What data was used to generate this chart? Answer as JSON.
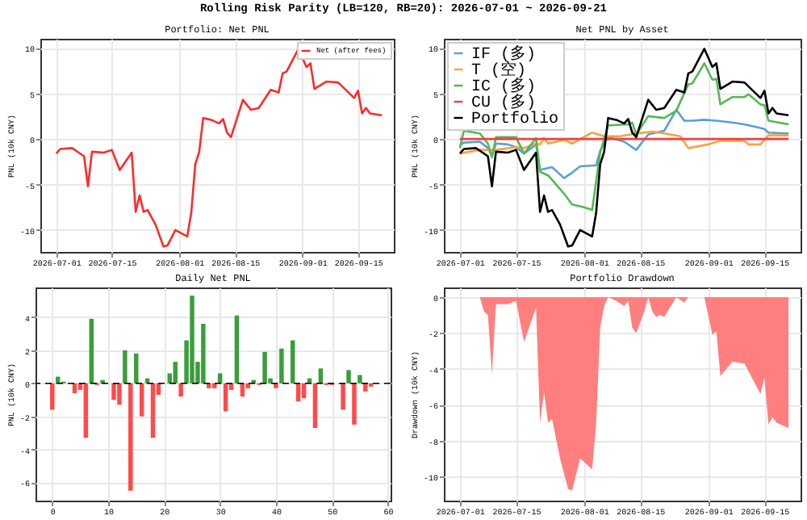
{
  "chart_data": [
    {
      "type": "line",
      "title": "Portfolio: Net PNL",
      "ylabel": "PNL (10k CNY)",
      "annotations": [
        "Rolling Risk Parity (LB=120, RB=20): 2026-07-01 ~ 2026-09-21"
      ],
      "x": [
        "2026-07-01",
        "2026-07-02",
        "2026-07-05",
        "2026-07-06",
        "2026-07-08",
        "2026-07-09",
        "2026-07-10",
        "2026-07-13",
        "2026-07-15",
        "2026-07-17",
        "2026-07-20",
        "2026-07-21",
        "2026-07-22",
        "2026-07-23",
        "2026-07-24",
        "2026-07-26",
        "2026-07-28",
        "2026-07-29",
        "2026-07-31",
        "2026-08-03",
        "2026-08-04",
        "2026-08-05",
        "2026-08-06",
        "2026-08-07",
        "2026-08-09",
        "2026-08-11",
        "2026-08-12",
        "2026-08-13",
        "2026-08-14",
        "2026-08-17",
        "2026-08-19",
        "2026-08-21",
        "2026-08-24",
        "2026-08-26",
        "2026-08-27",
        "2026-08-28",
        "2026-08-31",
        "2026-09-02",
        "2026-09-03",
        "2026-09-04",
        "2026-09-07",
        "2026-09-10",
        "2026-09-14",
        "2026-09-15",
        "2026-09-16",
        "2026-09-17",
        "2026-09-18",
        "2026-09-21"
      ],
      "series": [
        {
          "name": "Net (after fees)",
          "color": "#ff2a2a",
          "values": [
            -1.6,
            -1.1,
            -1.0,
            -1.3,
            -1.9,
            -5.2,
            -1.4,
            -1.5,
            -1.2,
            -3.4,
            -1.5,
            -8.0,
            -6.2,
            -8.0,
            -7.8,
            -9.4,
            -11.8,
            -11.7,
            -10.0,
            -10.7,
            -8.1,
            -2.8,
            -1.4,
            2.3,
            2.1,
            1.7,
            2.2,
            0.7,
            0.2,
            4.3,
            3.2,
            3.4,
            5.4,
            5.1,
            7.2,
            7.4,
            9.9,
            7.9,
            8.3,
            5.5,
            6.3,
            6.2,
            4.5,
            5.3,
            2.8,
            3.4,
            2.8,
            2.6
          ]
        }
      ],
      "xlim": [
        "2026-06-27",
        "2026-09-24"
      ],
      "xticks": [
        "2026-07-01",
        "2026-07-15",
        "2026-08-01",
        "2026-08-15",
        "2026-09-01",
        "2026-09-15"
      ],
      "ylim": [
        -12.4,
        11
      ],
      "yticks": [
        -10,
        -5,
        0,
        5,
        10
      ],
      "grid": true,
      "legend": "top right"
    },
    {
      "type": "line",
      "title": "Net PNL by Asset",
      "ylabel": "PNL (10k CNY)",
      "series": [
        {
          "name": "IF (多)",
          "color": "#5a9fd6",
          "x": [
            "2026-07-01",
            "2026-07-02",
            "2026-07-06",
            "2026-07-08",
            "2026-07-09",
            "2026-07-10",
            "2026-07-13",
            "2026-07-15",
            "2026-07-17",
            "2026-07-20",
            "2026-07-21",
            "2026-07-22",
            "2026-07-24",
            "2026-07-27",
            "2026-07-29",
            "2026-07-31",
            "2026-08-04",
            "2026-08-05",
            "2026-08-07",
            "2026-08-11",
            "2026-08-14",
            "2026-08-17",
            "2026-08-21",
            "2026-08-24",
            "2026-08-26",
            "2026-08-28",
            "2026-08-31",
            "2026-09-03",
            "2026-09-07",
            "2026-09-10",
            "2026-09-14",
            "2026-09-15",
            "2026-09-16",
            "2026-09-21"
          ],
          "values": [
            -0.7,
            -0.4,
            -0.3,
            -1.0,
            -1.9,
            -0.5,
            -0.6,
            -0.9,
            -1.6,
            -0.6,
            -3.4,
            -3.3,
            -3.1,
            -4.3,
            -3.7,
            -3.0,
            -2.9,
            -1.3,
            0.2,
            -0.3,
            -1.2,
            0.5,
            0.9,
            3.2,
            2.0,
            2.0,
            2.1,
            2.0,
            1.8,
            1.6,
            1.2,
            1.1,
            0.7,
            0.6
          ]
        },
        {
          "name": "T (空)",
          "color": "#ffa040",
          "x": [
            "2026-07-01",
            "2026-07-06",
            "2026-07-10",
            "2026-07-15",
            "2026-07-17",
            "2026-07-20",
            "2026-07-21",
            "2026-07-22",
            "2026-07-23",
            "2026-07-27",
            "2026-07-29",
            "2026-08-03",
            "2026-08-06",
            "2026-08-10",
            "2026-08-14",
            "2026-08-18",
            "2026-08-21",
            "2026-08-25",
            "2026-08-27",
            "2026-09-01",
            "2026-09-04",
            "2026-09-10",
            "2026-09-11",
            "2026-09-14",
            "2026-09-16",
            "2026-09-21"
          ],
          "values": [
            -1.6,
            -1.2,
            -1.2,
            -0.9,
            -1.0,
            -0.5,
            -0.6,
            0.1,
            -0.5,
            -0.1,
            -0.5,
            0.7,
            0.3,
            0.3,
            0.6,
            0.8,
            0.6,
            0.3,
            -1.0,
            -0.6,
            -0.2,
            -0.2,
            -0.6,
            -0.6,
            0.4,
            0.4
          ]
        },
        {
          "name": "IC (多)",
          "color": "#55b855",
          "x": [
            "2026-07-01",
            "2026-07-02",
            "2026-07-06",
            "2026-07-08",
            "2026-07-09",
            "2026-07-10",
            "2026-07-15",
            "2026-07-17",
            "2026-07-20",
            "2026-07-21",
            "2026-07-23",
            "2026-07-27",
            "2026-07-29",
            "2026-08-01",
            "2026-08-03",
            "2026-08-05",
            "2026-08-07",
            "2026-08-12",
            "2026-08-13",
            "2026-08-14",
            "2026-08-17",
            "2026-08-21",
            "2026-08-24",
            "2026-08-27",
            "2026-08-28",
            "2026-08-31",
            "2026-09-02",
            "2026-09-03",
            "2026-09-04",
            "2026-09-07",
            "2026-09-10",
            "2026-09-11",
            "2026-09-14",
            "2026-09-15",
            "2026-09-16",
            "2026-09-21"
          ],
          "values": [
            -1.0,
            0.9,
            0.6,
            -0.5,
            -2.0,
            0.2,
            0.2,
            -1.6,
            0.1,
            -3.6,
            -4.0,
            -6.0,
            -7.2,
            -7.5,
            -7.8,
            -1.5,
            1.5,
            1.6,
            1.8,
            0.5,
            2.5,
            2.3,
            3.1,
            6.0,
            6.1,
            8.3,
            6.5,
            6.6,
            3.8,
            4.6,
            4.6,
            4.9,
            3.8,
            3.7,
            2.0,
            1.6
          ]
        },
        {
          "name": "CU (多)",
          "color": "#e84545",
          "x": [
            "2026-07-01",
            "2026-09-21"
          ],
          "values": [
            0,
            0
          ]
        },
        {
          "name": "Portfolio",
          "color": "#000000",
          "x": [
            "2026-07-01",
            "2026-07-02",
            "2026-07-05",
            "2026-07-06",
            "2026-07-08",
            "2026-07-09",
            "2026-07-10",
            "2026-07-13",
            "2026-07-15",
            "2026-07-17",
            "2026-07-20",
            "2026-07-21",
            "2026-07-22",
            "2026-07-23",
            "2026-07-24",
            "2026-07-26",
            "2026-07-28",
            "2026-07-29",
            "2026-07-31",
            "2026-08-03",
            "2026-08-04",
            "2026-08-05",
            "2026-08-06",
            "2026-08-07",
            "2026-08-09",
            "2026-08-11",
            "2026-08-12",
            "2026-08-13",
            "2026-08-14",
            "2026-08-17",
            "2026-08-19",
            "2026-08-21",
            "2026-08-24",
            "2026-08-26",
            "2026-08-27",
            "2026-08-28",
            "2026-08-31",
            "2026-09-02",
            "2026-09-03",
            "2026-09-04",
            "2026-09-07",
            "2026-09-10",
            "2026-09-14",
            "2026-09-15",
            "2026-09-16",
            "2026-09-17",
            "2026-09-18",
            "2026-09-21"
          ],
          "values": [
            -1.6,
            -1.1,
            -1.0,
            -1.3,
            -1.9,
            -5.2,
            -1.4,
            -1.5,
            -1.2,
            -3.4,
            -1.5,
            -8.0,
            -6.2,
            -8.0,
            -7.8,
            -9.4,
            -11.8,
            -11.7,
            -10.0,
            -10.7,
            -8.1,
            -2.8,
            -1.4,
            2.3,
            2.1,
            1.7,
            2.2,
            0.7,
            0.2,
            4.3,
            3.2,
            3.4,
            5.4,
            5.1,
            7.2,
            7.4,
            9.9,
            7.9,
            8.3,
            5.5,
            6.3,
            6.2,
            4.5,
            5.3,
            2.8,
            3.4,
            2.8,
            2.6
          ]
        }
      ],
      "xlim": [
        "2026-06-27",
        "2026-09-24"
      ],
      "xticks": [
        "2026-07-01",
        "2026-07-15",
        "2026-08-01",
        "2026-08-15",
        "2026-09-01",
        "2026-09-15"
      ],
      "ylim": [
        -12.4,
        11
      ],
      "yticks": [
        -10,
        -5,
        0,
        5,
        10
      ],
      "grid": true,
      "legend": "top left"
    },
    {
      "type": "bar",
      "title": "Daily Net PNL",
      "ylabel": "PNL (10k CNY)",
      "x": [
        0,
        1,
        2,
        3,
        4,
        5,
        6,
        7,
        8,
        9,
        10,
        11,
        12,
        13,
        14,
        15,
        16,
        17,
        18,
        19,
        20,
        21,
        22,
        23,
        24,
        25,
        26,
        27,
        28,
        29,
        30,
        31,
        32,
        33,
        34,
        35,
        36,
        37,
        38,
        39,
        40,
        41,
        42,
        43,
        44,
        45,
        46,
        47,
        48,
        49,
        50,
        51,
        52,
        53,
        54,
        55,
        56,
        57
      ],
      "values": [
        -1.6,
        0.4,
        0.1,
        0,
        -0.6,
        -0.4,
        -3.3,
        3.9,
        -0.1,
        0.2,
        0,
        -1.0,
        -1.3,
        2.0,
        -6.5,
        1.8,
        -2.0,
        0.3,
        -3.3,
        -0.7,
        0,
        0.6,
        1.3,
        -0.8,
        2.6,
        5.3,
        1.3,
        3.6,
        -0.3,
        -0.3,
        0.6,
        -1.7,
        -0.4,
        4.1,
        -0.8,
        -0.3,
        0.2,
        -0.1,
        1.9,
        0.3,
        -0.3,
        2.1,
        0,
        2.6,
        -1.1,
        -0.9,
        0.3,
        -2.7,
        0.9,
        -0.1,
        -0.1,
        0,
        -1.6,
        0.8,
        -2.5,
        0.5,
        -0.5,
        -0.2
      ],
      "colors": [
        "#ff4a4a",
        "#3a9e3a",
        "#3a9e3a",
        "#3a9e3a",
        "#ff4a4a",
        "#ff4a4a",
        "#ff4a4a",
        "#3a9e3a",
        "#ff4a4a",
        "#3a9e3a",
        "#3a9e3a",
        "#ff4a4a",
        "#ff4a4a",
        "#3a9e3a",
        "#ff4a4a",
        "#3a9e3a",
        "#ff4a4a",
        "#3a9e3a",
        "#ff4a4a",
        "#ff4a4a",
        "#3a9e3a",
        "#3a9e3a",
        "#3a9e3a",
        "#ff4a4a",
        "#3a9e3a",
        "#3a9e3a",
        "#3a9e3a",
        "#3a9e3a",
        "#ff4a4a",
        "#ff4a4a",
        "#3a9e3a",
        "#ff4a4a",
        "#ff4a4a",
        "#3a9e3a",
        "#ff4a4a",
        "#ff4a4a",
        "#3a9e3a",
        "#ff4a4a",
        "#3a9e3a",
        "#3a9e3a",
        "#ff4a4a",
        "#3a9e3a",
        "#3a9e3a",
        "#3a9e3a",
        "#ff4a4a",
        "#ff4a4a",
        "#3a9e3a",
        "#ff4a4a",
        "#3a9e3a",
        "#ff4a4a",
        "#ff4a4a",
        "#3a9e3a",
        "#ff4a4a",
        "#3a9e3a",
        "#ff4a4a",
        "#3a9e3a",
        "#ff4a4a",
        "#ff4a4a"
      ],
      "xlim": [
        -3,
        60.5
      ],
      "xticks": [
        0,
        10,
        20,
        30,
        40,
        50,
        60
      ],
      "ylim": [
        -7.1,
        5.8
      ],
      "yticks": [
        -6,
        -4,
        -2,
        0,
        2,
        4
      ],
      "grid": true,
      "ref_lines": [
        {
          "axis": "y",
          "value": 0,
          "color": "#000000",
          "line_style": "dashed"
        }
      ]
    },
    {
      "type": "area",
      "title": "Portfolio Drawdown",
      "ylabel": "Drawdown (10k CNY)",
      "x": [
        "2026-07-01",
        "2026-07-06",
        "2026-07-07",
        "2026-07-08",
        "2026-07-09",
        "2026-07-10",
        "2026-07-13",
        "2026-07-15",
        "2026-07-17",
        "2026-07-20",
        "2026-07-21",
        "2026-07-22",
        "2026-07-23",
        "2026-07-24",
        "2026-07-26",
        "2026-07-28",
        "2026-07-29",
        "2026-07-31",
        "2026-08-03",
        "2026-08-04",
        "2026-08-05",
        "2026-08-06",
        "2026-08-07",
        "2026-08-09",
        "2026-08-11",
        "2026-08-12",
        "2026-08-13",
        "2026-08-14",
        "2026-08-16",
        "2026-08-17",
        "2026-08-18",
        "2026-08-19",
        "2026-08-20",
        "2026-08-21",
        "2026-08-24",
        "2026-08-26",
        "2026-08-27",
        "2026-08-31",
        "2026-09-02",
        "2026-09-03",
        "2026-09-04",
        "2026-09-07",
        "2026-09-10",
        "2026-09-14",
        "2026-09-15",
        "2026-09-16",
        "2026-09-17",
        "2026-09-18",
        "2026-09-21"
      ],
      "values": [
        0,
        0,
        -0.8,
        -1.0,
        -4.3,
        -0.4,
        -0.4,
        -0.2,
        -2.5,
        -0.6,
        -7.0,
        -5.3,
        -7.0,
        -6.8,
        -9.0,
        -10.7,
        -10.8,
        -9.0,
        -9.6,
        -7.1,
        -1.7,
        -0.5,
        0,
        -0.2,
        -0.5,
        -0.2,
        -1.7,
        -2.0,
        -0.8,
        0,
        -0.8,
        -1.1,
        -1.0,
        -1.1,
        0,
        -0.3,
        0,
        0,
        -2.1,
        -1.9,
        -4.4,
        -3.6,
        -3.7,
        -5.4,
        -4.5,
        -7.1,
        -6.7,
        -7.0,
        -7.3
      ],
      "color": "#ff7f7f",
      "xlim": [
        "2026-06-27",
        "2026-09-24"
      ],
      "xticks": [
        "2026-07-01",
        "2026-07-15",
        "2026-08-01",
        "2026-08-15",
        "2026-09-01",
        "2026-09-15"
      ],
      "ylim": [
        -11.35,
        0.54
      ],
      "yticks": [
        -10,
        -8,
        -6,
        -4,
        -2,
        0
      ],
      "grid": true
    }
  ]
}
